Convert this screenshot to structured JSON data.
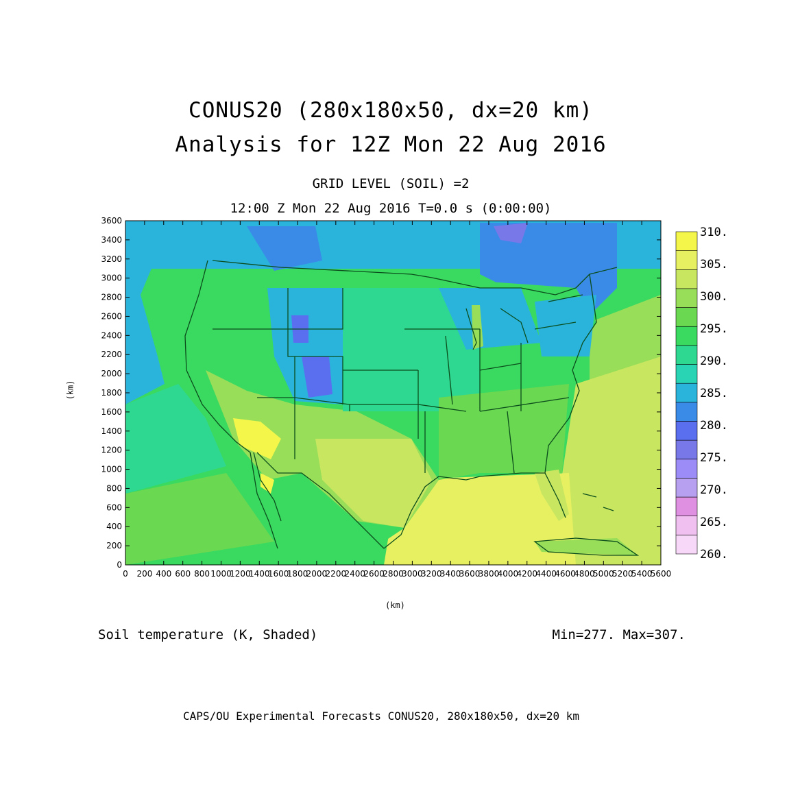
{
  "header": {
    "title_line1": "CONUS20 (280x180x50, dx=20 km)",
    "title_line2": "Analysis for 12Z Mon 22 Aug 2016",
    "subtitle_line1": "GRID LEVEL (SOIL) =2",
    "subtitle_line2": "12:00 Z Mon 22 Aug 2016   T=0.0 s (0:00:00)"
  },
  "axes": {
    "x_unit": "(km)",
    "y_unit": "(km)",
    "x_ticks": [
      "0",
      "200",
      "400",
      "600",
      "800",
      "1000",
      "1200",
      "1400",
      "1600",
      "1800",
      "2000",
      "2200",
      "2400",
      "2600",
      "2800",
      "3000",
      "3200",
      "3400",
      "3600",
      "3800",
      "4000",
      "4200",
      "4400",
      "4600",
      "4800",
      "5000",
      "5200",
      "5400",
      "5600"
    ],
    "y_ticks": [
      "0",
      "200",
      "400",
      "600",
      "800",
      "1000",
      "1200",
      "1400",
      "1600",
      "1800",
      "2000",
      "2200",
      "2400",
      "2600",
      "2800",
      "3000",
      "3200",
      "3400",
      "3600"
    ],
    "x_range": [
      0,
      5600
    ],
    "y_range": [
      0,
      3600
    ]
  },
  "colorbar": {
    "labels": [
      "260.",
      "265.",
      "270.",
      "275.",
      "280.",
      "285.",
      "290.",
      "295.",
      "300.",
      "305.",
      "310."
    ],
    "colors": [
      "#f8d8f8",
      "#f0c0f0",
      "#e090e0",
      "#b8a0f0",
      "#9c8cf8",
      "#7878e8",
      "#5a6ef0",
      "#3a8ae8",
      "#2ab4dc",
      "#28d4b4",
      "#2ed890",
      "#3ada60",
      "#6ad850",
      "#98de58",
      "#c8e660",
      "#e6f060",
      "#f4f64a"
    ]
  },
  "field": {
    "variable": "Soil temperature (K, Shaded)",
    "min_max": "Min=277.  Max=307."
  },
  "footer": {
    "credit": "CAPS/OU Experimental Forecasts  CONUS20, 280x180x50, dx=20 km"
  }
}
